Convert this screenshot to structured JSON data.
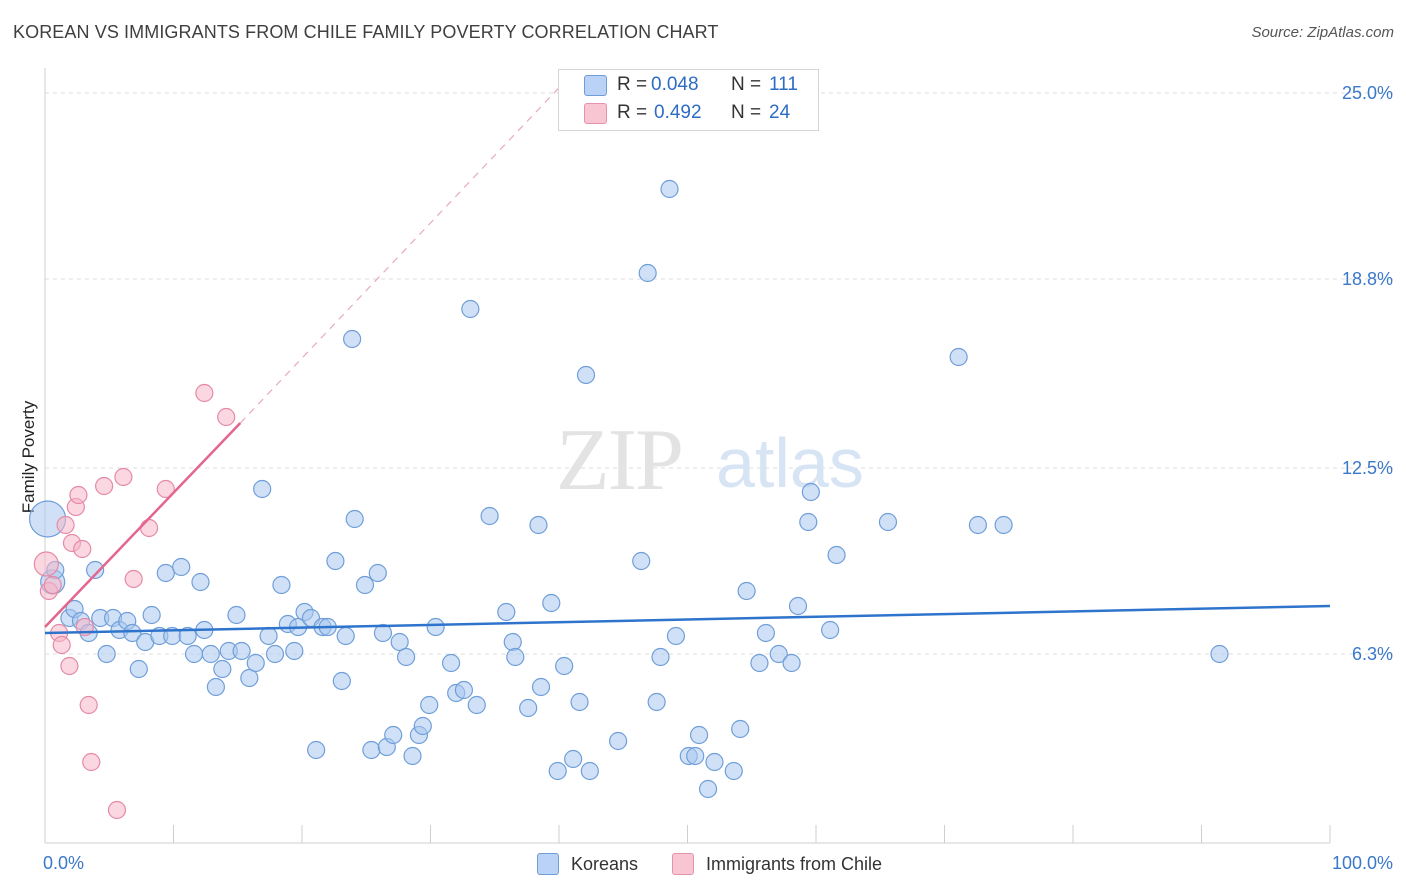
{
  "header": {
    "title": "KOREAN VS IMMIGRANTS FROM CHILE FAMILY POVERTY CORRELATION CHART",
    "source": "Source: ZipAtlas.com"
  },
  "legend": {
    "rows": [
      {
        "r_label": "R =",
        "r_value": "0.048",
        "n_label": "N =",
        "n_value": "111"
      },
      {
        "r_label": "R =",
        "r_value": "0.492",
        "n_label": "N =",
        "n_value": "24"
      }
    ]
  },
  "watermark": {
    "zip": "ZIP",
    "atlas": "atlas"
  },
  "colors": {
    "blue_fill": "#a9c8f0",
    "blue_stroke": "#6f9ed8",
    "blue_line": "#2f74cc",
    "pink_fill": "#f6b6c8",
    "pink_stroke": "#e58aa6",
    "pink_line": "#e4658e",
    "grid": "#dedede",
    "axis_text": "#3a78c9"
  },
  "chart_data": {
    "type": "scatter",
    "title": "KOREAN VS IMMIGRANTS FROM CHILE FAMILY POVERTY CORRELATION CHART",
    "xlabel": "",
    "ylabel": "Family Poverty",
    "xlim": [
      0,
      100
    ],
    "ylim": [
      0,
      25.5
    ],
    "x_tick_labels": [
      "0.0%",
      "100.0%"
    ],
    "y_ticks": [
      6.3,
      12.5,
      18.8,
      25.0
    ],
    "y_tick_labels": [
      "6.3%",
      "12.5%",
      "18.8%",
      "25.0%"
    ],
    "legend_entries": [
      "Koreans",
      "Immigrants from Chile"
    ],
    "series": [
      {
        "name": "Koreans",
        "r": 0.048,
        "n": 111,
        "trend": {
          "x": [
            0,
            100
          ],
          "y": [
            7.0,
            7.9
          ]
        },
        "points": [
          [
            0.2,
            10.8,
            3
          ],
          [
            0.6,
            8.7,
            2
          ],
          [
            0.8,
            9.1,
            1
          ],
          [
            1.9,
            7.5,
            1
          ],
          [
            2.3,
            7.8,
            1
          ],
          [
            2.8,
            7.4,
            1
          ],
          [
            3.4,
            7.0,
            1
          ],
          [
            3.9,
            9.1,
            1
          ],
          [
            4.3,
            7.5,
            1
          ],
          [
            4.8,
            6.3,
            1
          ],
          [
            5.3,
            7.5,
            1
          ],
          [
            5.8,
            7.1,
            1
          ],
          [
            6.4,
            7.4,
            1
          ],
          [
            6.8,
            7.0,
            1
          ],
          [
            7.3,
            5.8,
            1
          ],
          [
            7.8,
            6.7,
            1
          ],
          [
            8.3,
            7.6,
            1
          ],
          [
            8.9,
            6.9,
            1
          ],
          [
            9.4,
            9.0,
            1
          ],
          [
            9.9,
            6.9,
            1
          ],
          [
            10.6,
            9.2,
            1
          ],
          [
            11.1,
            6.9,
            1
          ],
          [
            11.6,
            6.3,
            1
          ],
          [
            12.1,
            8.7,
            1
          ],
          [
            12.4,
            7.1,
            1
          ],
          [
            12.9,
            6.3,
            1
          ],
          [
            13.3,
            5.2,
            1
          ],
          [
            13.8,
            5.8,
            1
          ],
          [
            14.3,
            6.4,
            1
          ],
          [
            14.9,
            7.6,
            1
          ],
          [
            15.3,
            6.4,
            1
          ],
          [
            15.9,
            5.5,
            1
          ],
          [
            16.4,
            6.0,
            1
          ],
          [
            16.9,
            11.8,
            1
          ],
          [
            17.4,
            6.9,
            1
          ],
          [
            17.9,
            6.3,
            1
          ],
          [
            18.4,
            8.6,
            1
          ],
          [
            18.9,
            7.3,
            1
          ],
          [
            19.4,
            6.4,
            1
          ],
          [
            19.7,
            7.2,
            1
          ],
          [
            20.2,
            7.7,
            1
          ],
          [
            20.7,
            7.5,
            1
          ],
          [
            21.1,
            3.1,
            1
          ],
          [
            21.6,
            7.2,
            1
          ],
          [
            22.0,
            7.2,
            1
          ],
          [
            22.6,
            9.4,
            1
          ],
          [
            23.1,
            5.4,
            1
          ],
          [
            23.4,
            6.9,
            1
          ],
          [
            23.9,
            16.8,
            1
          ],
          [
            24.1,
            10.8,
            1
          ],
          [
            24.9,
            8.6,
            1
          ],
          [
            25.4,
            3.1,
            1
          ],
          [
            25.9,
            9.0,
            1
          ],
          [
            26.3,
            7.0,
            1
          ],
          [
            26.6,
            3.2,
            1
          ],
          [
            27.1,
            3.6,
            1
          ],
          [
            27.6,
            6.7,
            1
          ],
          [
            28.1,
            6.2,
            1
          ],
          [
            28.6,
            2.9,
            1
          ],
          [
            29.1,
            3.6,
            1
          ],
          [
            29.4,
            3.9,
            1
          ],
          [
            29.9,
            4.6,
            1
          ],
          [
            30.4,
            7.2,
            1
          ],
          [
            31.6,
            6.0,
            1
          ],
          [
            32.0,
            5.0,
            1
          ],
          [
            32.6,
            5.1,
            1
          ],
          [
            33.1,
            17.8,
            1
          ],
          [
            33.6,
            4.6,
            1
          ],
          [
            34.6,
            10.9,
            1
          ],
          [
            35.9,
            7.7,
            1
          ],
          [
            36.4,
            6.7,
            1
          ],
          [
            36.6,
            6.2,
            1
          ],
          [
            37.6,
            4.5,
            1
          ],
          [
            38.4,
            10.6,
            1
          ],
          [
            38.6,
            5.2,
            1
          ],
          [
            39.4,
            8.0,
            1
          ],
          [
            39.9,
            2.4,
            1
          ],
          [
            40.4,
            5.9,
            1
          ],
          [
            41.1,
            2.8,
            1
          ],
          [
            41.6,
            4.7,
            1
          ],
          [
            42.1,
            15.6,
            1
          ],
          [
            42.4,
            2.4,
            1
          ],
          [
            44.6,
            3.4,
            1
          ],
          [
            46.4,
            9.4,
            1
          ],
          [
            46.9,
            19.0,
            1
          ],
          [
            47.6,
            4.7,
            1
          ],
          [
            47.9,
            6.2,
            1
          ],
          [
            48.6,
            21.8,
            1
          ],
          [
            49.1,
            6.9,
            1
          ],
          [
            50.1,
            2.9,
            1
          ],
          [
            50.6,
            2.9,
            1
          ],
          [
            50.9,
            3.6,
            1
          ],
          [
            51.6,
            1.8,
            1
          ],
          [
            52.1,
            2.7,
            1
          ],
          [
            53.6,
            2.4,
            1
          ],
          [
            54.1,
            3.8,
            1
          ],
          [
            54.6,
            8.4,
            1
          ],
          [
            55.6,
            6.0,
            1
          ],
          [
            56.1,
            7.0,
            1
          ],
          [
            57.1,
            6.3,
            1
          ],
          [
            58.1,
            6.0,
            1
          ],
          [
            58.6,
            7.9,
            1
          ],
          [
            59.4,
            10.7,
            1
          ],
          [
            59.6,
            11.7,
            1
          ],
          [
            61.1,
            7.1,
            1
          ],
          [
            61.6,
            9.6,
            1
          ],
          [
            65.6,
            10.7,
            1
          ],
          [
            71.1,
            16.2,
            1
          ],
          [
            72.6,
            10.6,
            1
          ],
          [
            74.6,
            10.6,
            1
          ],
          [
            91.4,
            6.3,
            1
          ]
        ]
      },
      {
        "name": "Immigrants from Chile",
        "r": 0.492,
        "n": 24,
        "trend": {
          "x": [
            0,
            15.2
          ],
          "y": [
            7.2,
            14.0
          ],
          "extension": {
            "x": [
              15.2,
              40.5
            ],
            "y": [
              14.0,
              25.4
            ]
          }
        },
        "points": [
          [
            0.1,
            9.3,
            2
          ],
          [
            0.3,
            8.4,
            1
          ],
          [
            0.6,
            8.6,
            1
          ],
          [
            1.1,
            7.0,
            1
          ],
          [
            1.3,
            6.6,
            1
          ],
          [
            1.6,
            10.6,
            1
          ],
          [
            1.9,
            5.9,
            1
          ],
          [
            2.1,
            10.0,
            1
          ],
          [
            2.4,
            11.2,
            1
          ],
          [
            2.6,
            11.6,
            1
          ],
          [
            2.9,
            9.8,
            1
          ],
          [
            3.1,
            7.2,
            1
          ],
          [
            3.4,
            4.6,
            1
          ],
          [
            3.6,
            2.7,
            1
          ],
          [
            4.6,
            11.9,
            1
          ],
          [
            5.6,
            1.1,
            1
          ],
          [
            6.1,
            12.2,
            1
          ],
          [
            6.9,
            8.8,
            1
          ],
          [
            8.1,
            10.5,
            1
          ],
          [
            9.4,
            11.8,
            1
          ],
          [
            12.4,
            15.0,
            1
          ],
          [
            14.1,
            14.2,
            1
          ]
        ]
      }
    ]
  },
  "axis": {
    "x_tick_labels": [
      "0.0%",
      "100.0%"
    ],
    "y_tick_labels": [
      "6.3%",
      "12.5%",
      "18.8%",
      "25.0%"
    ]
  },
  "bottom_legend": {
    "items": [
      {
        "label": "Koreans"
      },
      {
        "label": "Immigrants from Chile"
      }
    ]
  }
}
